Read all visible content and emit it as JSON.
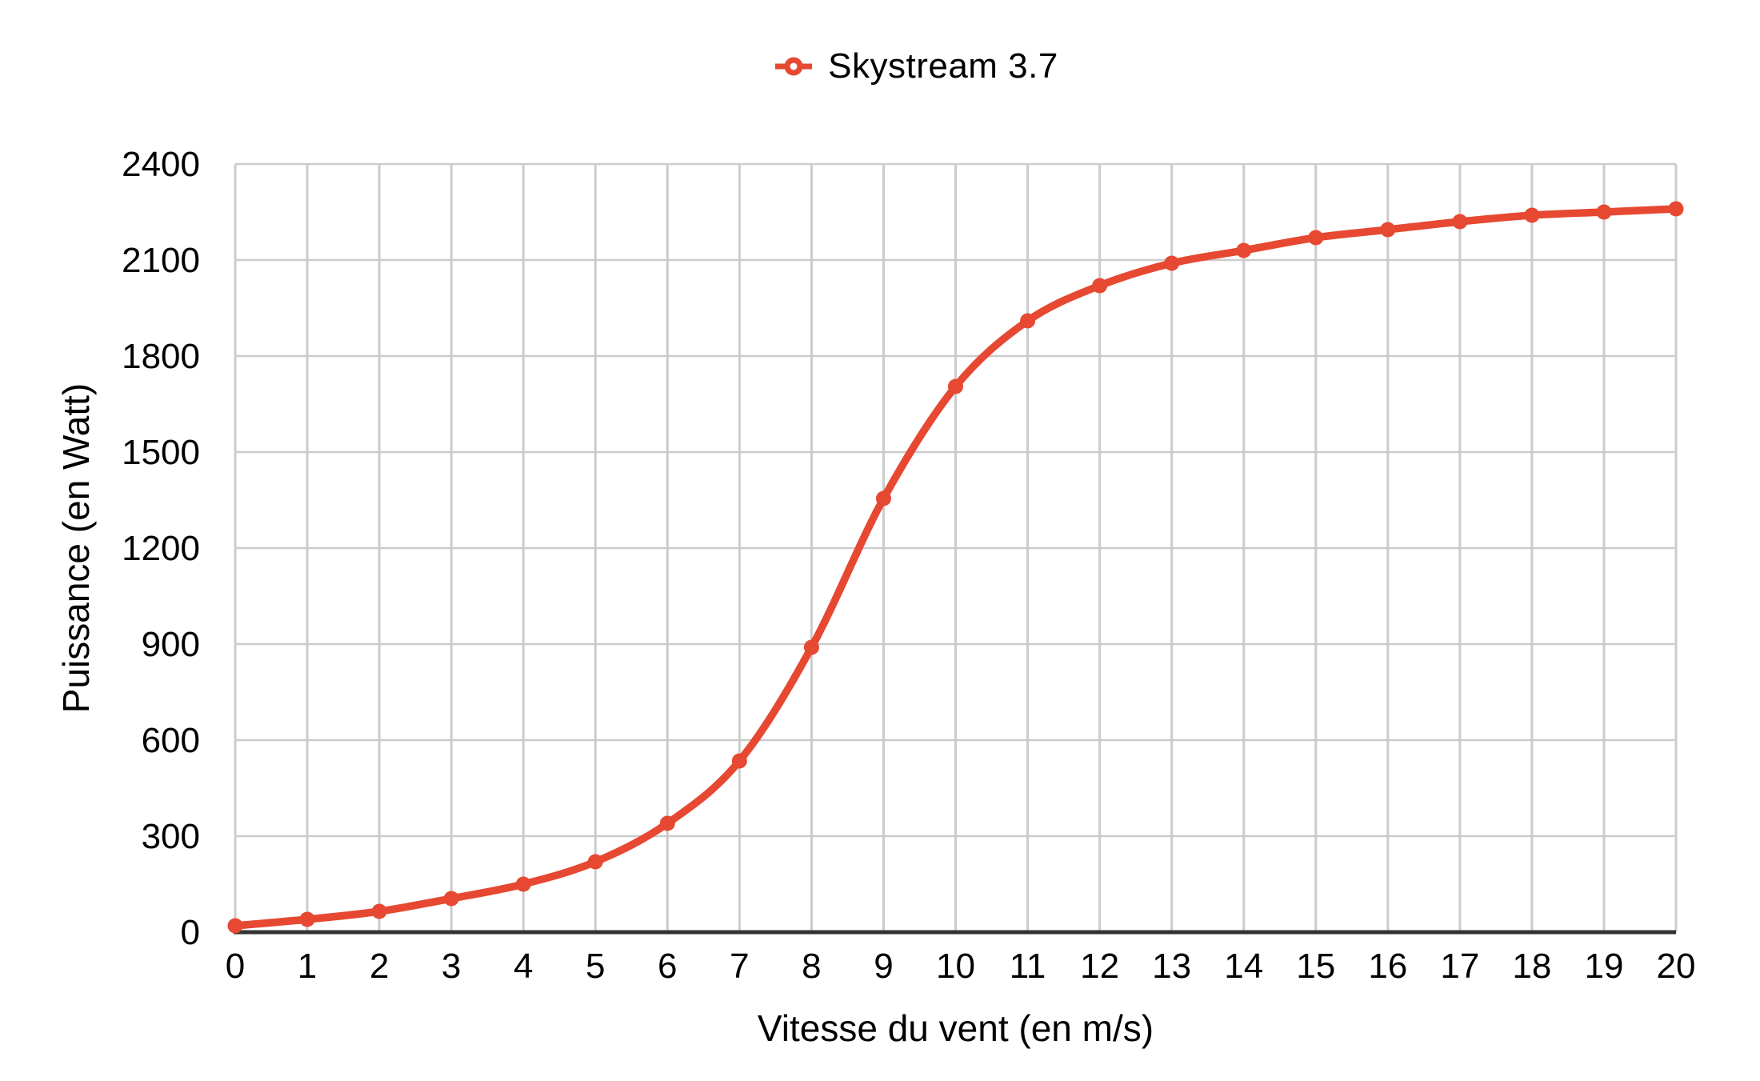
{
  "legend": {
    "label": "Skystream 3.7",
    "position": "top-center",
    "marker": "open-circle-on-line"
  },
  "colors": {
    "series": "#e64832",
    "grid": "#cccccc",
    "axis": "#333333",
    "text": "#000000"
  },
  "chart_data": {
    "type": "line",
    "title": "",
    "xlabel": "Vitesse du vent (en m/s)",
    "ylabel": "Puissance (en Watt)",
    "xlim": [
      0,
      20
    ],
    "ylim": [
      0,
      2400
    ],
    "x_ticks": [
      0,
      1,
      2,
      3,
      4,
      5,
      6,
      7,
      8,
      9,
      10,
      11,
      12,
      13,
      14,
      15,
      16,
      17,
      18,
      19,
      20
    ],
    "y_ticks": [
      0,
      300,
      600,
      900,
      1200,
      1500,
      1800,
      2100,
      2400
    ],
    "grid": true,
    "legend_position": "top-center",
    "series": [
      {
        "name": "Skystream 3.7",
        "color": "#e64832",
        "marker": "circle",
        "x": [
          0,
          1,
          2,
          3,
          4,
          5,
          6,
          7,
          8,
          9,
          10,
          11,
          12,
          13,
          14,
          15,
          16,
          17,
          18,
          19,
          20
        ],
        "values": [
          20,
          40,
          65,
          105,
          150,
          220,
          340,
          535,
          890,
          1355,
          1705,
          1910,
          2020,
          2090,
          2130,
          2170,
          2195,
          2220,
          2240,
          2250,
          2260
        ]
      }
    ]
  }
}
